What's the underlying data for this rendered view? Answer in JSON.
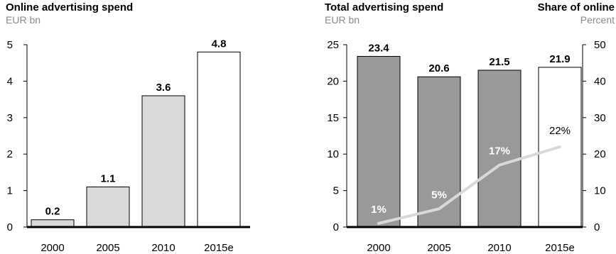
{
  "charts": {
    "left": {
      "title": "Online advertising spend",
      "unit": "EUR bn"
    },
    "right": {
      "title": "Total advertising spend",
      "unit": "EUR bn",
      "secondary_title": "Share of online",
      "secondary_unit": "Percent"
    }
  },
  "chart_data": [
    {
      "type": "bar",
      "title": "Online advertising spend",
      "ylabel": "EUR bn",
      "categories": [
        "2000",
        "2005",
        "2010",
        "2015e"
      ],
      "series": [
        {
          "values": [
            0.2,
            1.1,
            3.6,
            4.8
          ]
        }
      ],
      "data_labels": [
        "0.2",
        "1.1",
        "3.6",
        "4.8"
      ],
      "ylim": [
        0,
        5
      ],
      "y_ticks": [
        0,
        1,
        2,
        3,
        4,
        5
      ],
      "grid": false,
      "colors": {
        "bar": "#d9d9d9",
        "bar_forecast": "#ffffff",
        "outline": "#000000"
      }
    },
    {
      "type": "bar",
      "title": "Total advertising spend",
      "ylabel": "EUR bn",
      "categories": [
        "2000",
        "2005",
        "2010",
        "2015e"
      ],
      "series": [
        {
          "values": [
            23.4,
            20.6,
            21.5,
            21.9
          ]
        }
      ],
      "data_labels": [
        "23.4",
        "20.6",
        "21.5",
        "21.9"
      ],
      "ylim": [
        0,
        25
      ],
      "y_ticks": [
        0,
        5,
        10,
        15,
        20,
        25
      ],
      "secondary_axis": {
        "title": "Share of online",
        "unit": "Percent",
        "ylim": [
          0,
          50
        ],
        "y_ticks": [
          0,
          10,
          20,
          30,
          40,
          50
        ],
        "type": "line",
        "values": [
          1,
          5,
          17,
          22
        ],
        "labels": [
          "1%",
          "5%",
          "17%",
          "22%"
        ]
      },
      "grid": false,
      "colors": {
        "bar": "#999999",
        "bar_forecast": "#ffffff",
        "line": "#d9d9d9",
        "outline": "#000000"
      }
    }
  ]
}
